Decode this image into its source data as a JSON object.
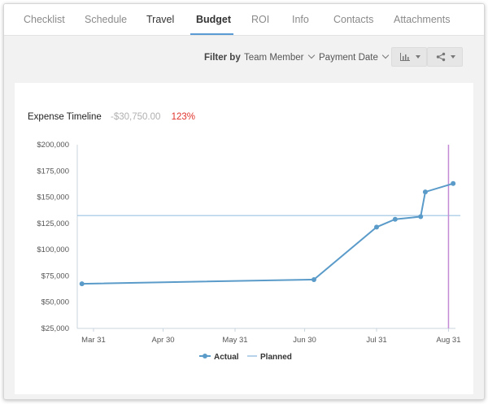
{
  "tabs": [
    {
      "label": "Checklist"
    },
    {
      "label": "Schedule"
    },
    {
      "label": "Travel"
    },
    {
      "label": "Budget"
    },
    {
      "label": "ROI"
    },
    {
      "label": "Info"
    },
    {
      "label": "Contacts"
    },
    {
      "label": "Attachments"
    }
  ],
  "active_tab": "Budget",
  "toolbar": {
    "filter_label": "Filter by",
    "team_member": "Team Member",
    "payment_date": "Payment Date",
    "chart_icon": "bar-chart-icon",
    "share_icon": "share-icon"
  },
  "chart_header": {
    "title": "Expense Timeline",
    "variance": "-$30,750.00",
    "percent": "123%",
    "percent_color": "#e0332b"
  },
  "chart_data": {
    "type": "line",
    "title": "Expense Timeline",
    "y_tick_labels": [
      "$200,000",
      "$175,000",
      "$150,000",
      "$125,000",
      "$100,000",
      "$75,000",
      "$50,000",
      "$25,000"
    ],
    "ylim": [
      25000,
      200000
    ],
    "x_tick_labels": [
      "Mar 31",
      "Apr 30",
      "May 31",
      "Jun 30",
      "Jul 31",
      "Aug 31"
    ],
    "xlim": [
      "2019-03-24",
      "2019-09-03"
    ],
    "series": [
      {
        "name": "Actual",
        "color": "#5a9bc9",
        "points": [
          {
            "x": "2019-03-26",
            "y": 67500
          },
          {
            "x": "2019-07-04",
            "y": 71500
          },
          {
            "x": "2019-07-31",
            "y": 121500
          },
          {
            "x": "2019-08-08",
            "y": 129000
          },
          {
            "x": "2019-08-19",
            "y": 131500
          },
          {
            "x": "2019-08-21",
            "y": 155000
          },
          {
            "x": "2019-09-02",
            "y": 163000
          }
        ]
      },
      {
        "name": "Planned",
        "color": "#9cc3e2",
        "value": 132500
      }
    ],
    "today_marker": {
      "x": "2019-08-31",
      "color": "#c38ad6"
    },
    "legend": "bottom-center",
    "grid": false
  }
}
